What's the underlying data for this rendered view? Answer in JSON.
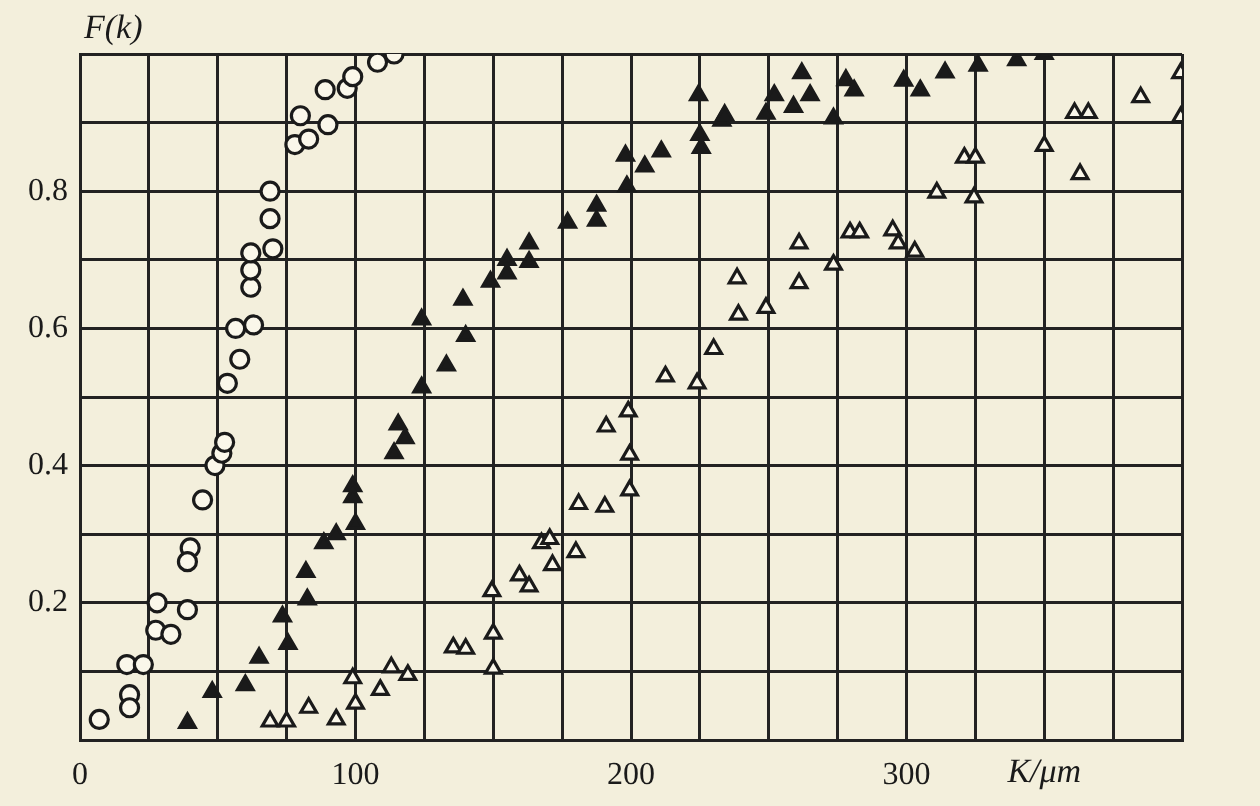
{
  "chart_data": {
    "type": "scatter",
    "xlabel": "K/μm",
    "ylabel": "F(k)",
    "xlim": [
      0,
      400
    ],
    "ylim": [
      0,
      1
    ],
    "xticks": [
      0,
      {
        "value": 25,
        "label": null
      },
      {
        "value": 50,
        "label": null
      },
      {
        "value": 75,
        "label": null
      },
      100,
      {
        "value": 125,
        "label": null
      },
      {
        "value": 150,
        "label": null
      },
      {
        "value": 175,
        "label": null
      },
      200,
      {
        "value": 225,
        "label": null
      },
      {
        "value": 250,
        "label": null
      },
      {
        "value": 275,
        "label": null
      },
      300,
      {
        "value": 325,
        "label": null
      },
      {
        "value": 350,
        "label": null
      },
      {
        "value": 375,
        "label": null
      },
      {
        "value": 400,
        "label": null
      }
    ],
    "yticks": [
      {
        "value": 0,
        "label": null
      },
      {
        "value": 0.1,
        "label": null
      },
      0.2,
      {
        "value": 0.3,
        "label": null
      },
      0.4,
      {
        "value": 0.5,
        "label": null
      },
      0.6,
      {
        "value": 0.7,
        "label": null
      },
      0.8,
      {
        "value": 0.9,
        "label": null
      },
      {
        "value": 1,
        "label": null
      }
    ],
    "grid": true,
    "legend": false,
    "series": [
      {
        "color": "#faf7ea",
        "marker": "circle",
        "x": [
          7,
          17,
          23,
          18,
          18,
          28,
          27.5,
          33,
          39,
          40,
          39,
          44.5,
          49,
          51.5,
          52.5,
          53.5,
          58,
          56.5,
          63,
          62,
          62,
          62,
          70,
          69,
          69,
          78,
          83,
          80,
          90,
          89,
          97,
          99,
          108,
          114
        ],
        "values": [
          0.03,
          0.11,
          0.11,
          0.066,
          0.047,
          0.2,
          0.16,
          0.154,
          0.19,
          0.28,
          0.26,
          0.35,
          0.4,
          0.418,
          0.434,
          0.52,
          0.555,
          0.6,
          0.605,
          0.66,
          0.685,
          0.71,
          0.716,
          0.76,
          0.8,
          0.868,
          0.876,
          0.91,
          0.897,
          0.948,
          0.95,
          0.967,
          0.988,
          1.0
        ]
      },
      {
        "color": "#1a1a1a",
        "marker": "triangle",
        "x": [
          39,
          48,
          60,
          65,
          73.5,
          75.5,
          82,
          82.5,
          88.5,
          93,
          99,
          99,
          100,
          114,
          115.5,
          118,
          124,
          124,
          133,
          139,
          140,
          149,
          155,
          155,
          163,
          163,
          177,
          187.5,
          187.5,
          198,
          198.5,
          205,
          211,
          224.5,
          225,
          225.5,
          233,
          234,
          249,
          252,
          259,
          262,
          265,
          273.5,
          278,
          281,
          299,
          305,
          314,
          326,
          340,
          350
        ],
        "values": [
          0.025,
          0.07,
          0.08,
          0.12,
          0.18,
          0.14,
          0.245,
          0.205,
          0.287,
          0.3,
          0.37,
          0.354,
          0.315,
          0.418,
          0.46,
          0.44,
          0.613,
          0.514,
          0.546,
          0.642,
          0.589,
          0.668,
          0.7,
          0.68,
          0.724,
          0.697,
          0.754,
          0.779,
          0.757,
          0.852,
          0.807,
          0.836,
          0.858,
          0.94,
          0.882,
          0.863,
          0.903,
          0.911,
          0.913,
          0.94,
          0.923,
          0.972,
          0.94,
          0.906,
          0.962,
          0.947,
          0.961,
          0.947,
          0.973,
          0.983,
          0.991,
          1.0
        ]
      },
      {
        "color": "#faf7ea",
        "marker": "triangle",
        "x": [
          69,
          75,
          83,
          93,
          99,
          100,
          109,
          113,
          119,
          135.5,
          140,
          149.5,
          150,
          150,
          159.5,
          163,
          167.5,
          170.5,
          171.5,
          180,
          181,
          190.5,
          191,
          199,
          199.5,
          199.5,
          212.5,
          224,
          230,
          238.5,
          239,
          249,
          261,
          261,
          273.5,
          279.5,
          283,
          295,
          297,
          303,
          311,
          321,
          325,
          324.5,
          350,
          361,
          366,
          363,
          385,
          399.5,
          399.5
        ],
        "values": [
          0.027,
          0.027,
          0.047,
          0.03,
          0.09,
          0.053,
          0.073,
          0.106,
          0.095,
          0.135,
          0.133,
          0.217,
          0.155,
          0.104,
          0.24,
          0.224,
          0.287,
          0.293,
          0.255,
          0.274,
          0.344,
          0.34,
          0.457,
          0.479,
          0.416,
          0.364,
          0.53,
          0.52,
          0.57,
          0.673,
          0.62,
          0.63,
          0.724,
          0.666,
          0.693,
          0.74,
          0.74,
          0.743,
          0.724,
          0.712,
          0.798,
          0.849,
          0.849,
          0.791,
          0.866,
          0.914,
          0.914,
          0.825,
          0.937,
          0.972,
          0.908
        ]
      }
    ]
  }
}
